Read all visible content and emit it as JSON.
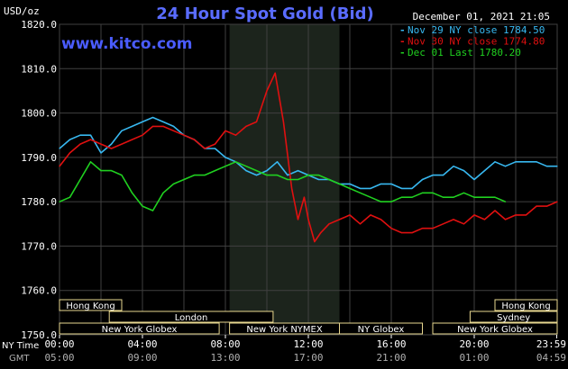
{
  "header": {
    "title": "24 Hour Spot Gold (Bid)",
    "timestamp": "December 01, 2021 21:05",
    "y_unit": "USD/oz",
    "watermark": "www.kitco.com"
  },
  "legend": [
    {
      "marker": "-",
      "text": "Nov 29 NY close 1784.50",
      "color": "#38b8f0"
    },
    {
      "marker": "-",
      "text": "Nov 30 NY close 1774.80",
      "color": "#e01010"
    },
    {
      "marker": "-",
      "text": "Dec 01 Last 1780.20",
      "color": "#20d020"
    }
  ],
  "sessions": {
    "upper": [
      {
        "label": "Hong Kong",
        "start": 0,
        "end": 3.0,
        "row": 0
      },
      {
        "label": "Hong Kong",
        "start": 21.0,
        "end": 24.0,
        "row": 0
      },
      {
        "label": "London",
        "start": 2.4,
        "end": 10.3,
        "row": 1
      },
      {
        "label": "Sydney",
        "start": 19.8,
        "end": 24.0,
        "row": 1
      },
      {
        "label": "New York Globex",
        "start": 0,
        "end": 7.7,
        "row": 2
      },
      {
        "label": "New York NYMEX",
        "start": 8.2,
        "end": 13.5,
        "row": 2
      },
      {
        "label": "NY Globex",
        "start": 13.5,
        "end": 17.5,
        "row": 2
      },
      {
        "label": "New York Globex",
        "start": 18.0,
        "end": 24.0,
        "row": 2
      }
    ]
  },
  "footer": {
    "row1_label": "NY Time",
    "row2_label": "GMT",
    "ny_ticks": [
      "00:00",
      "04:00",
      "08:00",
      "12:00",
      "16:00",
      "20:00",
      "23:59"
    ],
    "gmt_ticks": [
      "05:00",
      "09:00",
      "13:00",
      "17:00",
      "21:00",
      "01:00",
      "04:59"
    ]
  },
  "colors": {
    "grid": "#404040",
    "axis_text": "#ffffff",
    "title": "#5a6cff",
    "watermark": "#4a5cff",
    "highlight": "#1c241c",
    "session_box": "#e8d890"
  },
  "chart_data": {
    "type": "line",
    "title": "24 Hour Spot Gold (Bid)",
    "xlabel": "NY Time",
    "ylabel": "USD/oz",
    "xlim": [
      0,
      24
    ],
    "ylim": [
      1750,
      1820
    ],
    "yticks": [
      1750,
      1760,
      1770,
      1780,
      1790,
      1800,
      1810,
      1820
    ],
    "ytick_labels": [
      "1750.0",
      "1760.0",
      "1770.0",
      "1780.0",
      "1790.0",
      "1800.0",
      "1810.0",
      "1820.0"
    ],
    "xticks": [
      0,
      4,
      8,
      12,
      16,
      20,
      23.98
    ],
    "grid": true,
    "highlight_range_hours": [
      8.2,
      13.5
    ],
    "series": [
      {
        "name": "Nov 29 NY close 1784.50",
        "color": "#38b8f0",
        "x": [
          0,
          0.5,
          1,
          1.5,
          2,
          2.5,
          3,
          3.5,
          4,
          4.5,
          5,
          5.5,
          6,
          6.5,
          7,
          7.5,
          8,
          8.5,
          9,
          9.5,
          10,
          10.5,
          11,
          11.5,
          12,
          12.5,
          13,
          13.5,
          14,
          14.5,
          15,
          15.5,
          16,
          16.5,
          17,
          17.5,
          18,
          18.5,
          19,
          19.5,
          20,
          20.5,
          21,
          21.5,
          22,
          22.5,
          23,
          23.5,
          24
        ],
        "y": [
          1792,
          1794,
          1795,
          1795,
          1791,
          1793,
          1796,
          1797,
          1798,
          1799,
          1798,
          1797,
          1795,
          1794,
          1792,
          1792,
          1790,
          1789,
          1787,
          1786,
          1787,
          1789,
          1786,
          1787,
          1786,
          1785,
          1785,
          1784,
          1784,
          1783,
          1783,
          1784,
          1784,
          1783,
          1783,
          1785,
          1786,
          1786,
          1788,
          1787,
          1785,
          1787,
          1789,
          1788,
          1789,
          1789,
          1789,
          1788,
          1788
        ]
      },
      {
        "name": "Nov 30 NY close 1774.80",
        "color": "#e01010",
        "x": [
          0,
          0.5,
          1,
          1.5,
          2,
          2.5,
          3,
          3.5,
          4,
          4.5,
          5,
          5.5,
          6,
          6.5,
          7,
          7.5,
          8,
          8.5,
          9,
          9.5,
          10,
          10.4,
          10.8,
          11.2,
          11.5,
          11.8,
          12,
          12.3,
          12.6,
          13,
          13.5,
          14,
          14.5,
          15,
          15.5,
          16,
          16.5,
          17,
          17.5,
          18,
          18.5,
          19,
          19.5,
          20,
          20.5,
          21,
          21.5,
          22,
          22.5,
          23,
          23.5,
          24
        ],
        "y": [
          1788,
          1791,
          1793,
          1794,
          1793,
          1792,
          1793,
          1794,
          1795,
          1797,
          1797,
          1796,
          1795,
          1794,
          1792,
          1793,
          1796,
          1795,
          1797,
          1798,
          1805,
          1809,
          1798,
          1783,
          1776,
          1781,
          1776,
          1771,
          1773,
          1775,
          1776,
          1777,
          1775,
          1777,
          1776,
          1774,
          1773,
          1773,
          1774,
          1774,
          1775,
          1776,
          1775,
          1777,
          1776,
          1778,
          1776,
          1777,
          1777,
          1779,
          1779,
          1780
        ]
      },
      {
        "name": "Dec 01 Last 1780.20",
        "color": "#20d020",
        "x": [
          0,
          0.5,
          1,
          1.5,
          2,
          2.5,
          3,
          3.5,
          4,
          4.5,
          5,
          5.5,
          6,
          6.5,
          7,
          7.5,
          8,
          8.5,
          9,
          9.5,
          10,
          10.5,
          11,
          11.5,
          12,
          12.5,
          13,
          13.5,
          14,
          14.5,
          15,
          15.5,
          16,
          16.5,
          17,
          17.5,
          18,
          18.5,
          19,
          19.5,
          20,
          20.5,
          21,
          21.5
        ],
        "y": [
          1780,
          1781,
          1785,
          1789,
          1787,
          1787,
          1786,
          1782,
          1779,
          1778,
          1782,
          1784,
          1785,
          1786,
          1786,
          1787,
          1788,
          1789,
          1788,
          1787,
          1786,
          1786,
          1785,
          1785,
          1786,
          1786,
          1785,
          1784,
          1783,
          1782,
          1781,
          1780,
          1780,
          1781,
          1781,
          1782,
          1782,
          1781,
          1781,
          1782,
          1781,
          1781,
          1781,
          1780
        ]
      }
    ]
  }
}
